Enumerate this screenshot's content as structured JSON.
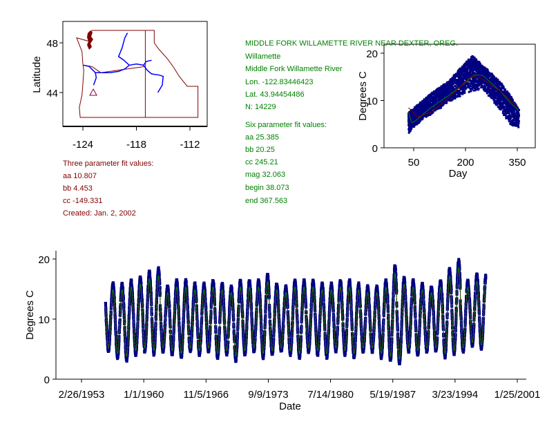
{
  "colors": {
    "text_left": "#800000",
    "text_right": "#008000",
    "scatter": "#000080",
    "fit_six": "#008000",
    "fit_three": "#800000",
    "river": "#0000ff",
    "border": "#800000"
  },
  "info": {
    "station": "MIDDLE FORK WILLAMETTE RIVER NEAR DEXTER, OREG.",
    "basin": "Willamette",
    "river": "Middle Fork Willamette River",
    "lon": "Lon. -122.83446423",
    "lat": "Lat. 43.94454486",
    "n": "N: 14229",
    "six_title": "Six parameter fit values:",
    "six": [
      "aa 25.385",
      "bb 20.25",
      "cc 245.21",
      "mag 32.063",
      "begin 38.073",
      "end 367.563"
    ],
    "three_title": "Three parameter fit values:",
    "three": [
      "aa 10.807",
      "bb 4.453",
      "cc -149.331"
    ],
    "created": "Created:   Jan. 2, 2002"
  },
  "chart_data": [
    {
      "type": "map",
      "ylabel": "Latitude",
      "xticks": [
        "-124",
        "-118",
        "-112"
      ],
      "yticks": [
        "48",
        "44"
      ],
      "xlim": [
        -126.3,
        -110.2
      ],
      "ylim": [
        41.3,
        49.7
      ],
      "site": {
        "lon": -122.83446423,
        "lat": 43.94454486,
        "marker": "triangle"
      },
      "borders": [
        [
          [
            -123,
            49
          ],
          [
            -117,
            49
          ],
          [
            -116,
            49
          ],
          [
            -116,
            48
          ],
          [
            -115.5,
            47.5
          ],
          [
            -114.5,
            46.7
          ],
          [
            -113.8,
            46
          ],
          [
            -113.2,
            45.3
          ],
          [
            -112.3,
            44.5
          ],
          [
            -111.1,
            44.5
          ],
          [
            -111.1,
            42
          ],
          [
            -117,
            42
          ],
          [
            -124.3,
            42
          ],
          [
            -124.4,
            42.8
          ],
          [
            -124.1,
            43.8
          ],
          [
            -124,
            44.7
          ],
          [
            -123.9,
            45.8
          ],
          [
            -124,
            46.3
          ],
          [
            -124.1,
            47.3
          ],
          [
            -124.7,
            48.4
          ],
          [
            -123.2,
            48.1
          ],
          [
            -123,
            49
          ]
        ],
        [
          [
            -117,
            49
          ],
          [
            -117,
            42
          ]
        ],
        [
          [
            -124,
            46.2
          ],
          [
            -123,
            46.1
          ],
          [
            -122,
            45.6
          ],
          [
            -119,
            45.9
          ],
          [
            -117,
            46.1
          ]
        ]
      ],
      "rivers": [
        [
          [
            -123.9,
            46.2
          ],
          [
            -123.3,
            46.1
          ],
          [
            -122.6,
            45.6
          ],
          [
            -121,
            45.6
          ],
          [
            -120,
            45.7
          ],
          [
            -119.3,
            45.9
          ],
          [
            -118.8,
            46.2
          ],
          [
            -118,
            46.3
          ],
          [
            -117.2,
            46.2
          ]
        ],
        [
          [
            -117.2,
            46.2
          ],
          [
            -116.8,
            45.8
          ],
          [
            -116.3,
            45.5
          ],
          [
            -115.4,
            45.4
          ],
          [
            -115,
            45.3
          ],
          [
            -115.1,
            44.6
          ],
          [
            -115.6,
            44
          ]
        ],
        [
          [
            -118.8,
            46.2
          ],
          [
            -119.4,
            46.6
          ],
          [
            -120,
            46.9
          ],
          [
            -119.6,
            47.6
          ],
          [
            -119.3,
            48.4
          ],
          [
            -119,
            48.8
          ]
        ],
        [
          [
            -122.6,
            45.6
          ],
          [
            -122.5,
            45.2
          ],
          [
            -122.8,
            44.6
          ]
        ],
        [
          [
            -117.2,
            46.2
          ],
          [
            -116.9,
            46.5
          ],
          [
            -116.3,
            46.6
          ]
        ]
      ]
    },
    {
      "type": "scatter",
      "xlabel": "Day",
      "ylabel": "Degrees C",
      "xticks": [
        50,
        200,
        350
      ],
      "yticks": [
        0,
        10,
        20
      ],
      "xlim": [
        -7,
        403
      ],
      "ylim": [
        0,
        20
      ],
      "envelope": {
        "day": [
          35,
          60,
          100,
          150,
          200,
          220,
          250,
          300,
          330,
          355
        ],
        "low": [
          3,
          5,
          7,
          9.5,
          11.5,
          12,
          12.5,
          8,
          5,
          4
        ],
        "high": [
          7.5,
          9,
          11.5,
          14,
          18,
          19.5,
          17.5,
          14,
          11,
          8
        ]
      },
      "series": [
        {
          "day": [
            35,
            45,
            60,
            100,
            150,
            200,
            225,
            250,
            300,
            330,
            355
          ],
          "temp": [
            7.5,
            5.2,
            6,
            8.5,
            11,
            13.8,
            15.4,
            15.3,
            12,
            9.5,
            7.8
          ]
        },
        {
          "day": [
            35,
            60,
            100,
            150,
            200,
            220,
            250,
            300,
            330,
            355
          ],
          "temp": [
            8.5,
            6.5,
            7.5,
            10.5,
            14,
            15.2,
            14.5,
            12,
            10,
            8.5
          ]
        }
      ]
    },
    {
      "type": "line",
      "xlabel": "Date",
      "ylabel": "Degrees C",
      "yticks": [
        0,
        10,
        20
      ],
      "ylim": [
        0,
        21.5
      ],
      "xticks": [
        "2/26/1953",
        "1/1/1960",
        "11/5/1966",
        "9/9/1973",
        "7/14/1980",
        "5/19/1987",
        "3/23/1994",
        "1/25/2001"
      ],
      "xrange_years": [
        1950.4,
        2002.1
      ],
      "data_years": [
        1955.8,
        1997.6
      ],
      "annual_max": [
        15.5,
        15.5,
        16,
        16.5,
        17.5,
        18,
        15,
        16,
        16,
        15.5,
        15.5,
        16,
        15.5,
        15,
        16,
        16,
        16,
        17,
        15.5,
        15,
        16,
        16,
        16,
        15.5,
        15.5,
        16,
        16,
        15.5,
        15,
        15,
        16,
        18.5,
        16.5,
        16,
        15.5,
        15,
        16,
        18,
        19.5,
        16,
        17,
        17
      ],
      "annual_min": [
        5,
        4,
        3.5,
        4.5,
        5,
        4.5,
        5,
        4.5,
        4,
        5,
        4.5,
        5,
        4,
        4.5,
        3.5,
        4.5,
        5,
        4,
        4.5,
        5,
        4.5,
        4,
        5,
        4.5,
        4,
        5,
        4.5,
        4,
        5,
        5,
        4,
        3.5,
        3,
        5,
        4.5,
        5,
        5,
        4,
        4.5,
        5,
        6,
        5.5
      ]
    }
  ]
}
